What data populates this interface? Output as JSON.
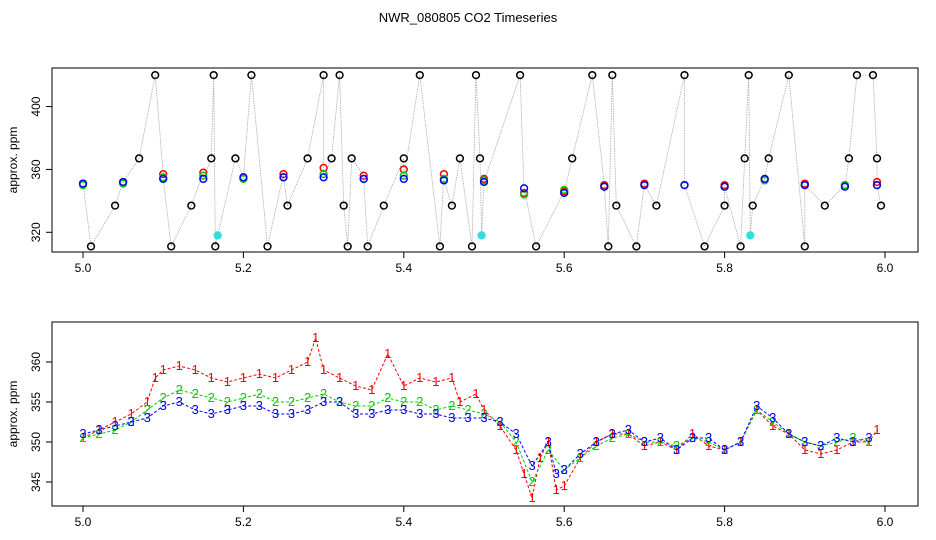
{
  "figure": {
    "title": "NWR_080805  CO2 Timeseries"
  },
  "colors": {
    "red": "#ff0000",
    "green": "#00cc00",
    "blue": "#0000ff",
    "black": "#000000",
    "cyan": "#33dddd",
    "gray": "#aaaaaa"
  },
  "chart_data": [
    {
      "type": "scatter",
      "title": "NWR_080805  CO2 Timeseries",
      "xlabel": "",
      "ylabel": "approx. ppm",
      "xlim": [
        5.0,
        6.0
      ],
      "ylim": [
        310,
        422
      ],
      "xticks": [
        5.0,
        5.2,
        5.4,
        5.6,
        5.8,
        6.0
      ],
      "xtick_labels": [
        "5.0",
        "5.2",
        "5.4",
        "5.6",
        "5.8",
        "6.0"
      ],
      "yticks": [
        320,
        360,
        400
      ],
      "ytick_labels": [
        "320",
        "360",
        "400"
      ],
      "grid": false,
      "legend": "none",
      "series": [
        {
          "color": "black",
          "marker": "circle",
          "x": [
            5.01,
            5.04,
            5.07,
            5.09,
            5.11,
            5.135,
            5.16,
            5.163,
            5.165,
            5.19,
            5.21,
            5.23,
            5.255,
            5.28,
            5.3,
            5.31,
            5.32,
            5.325,
            5.33,
            5.335,
            5.355,
            5.375,
            5.4,
            5.42,
            5.445,
            5.46,
            5.47,
            5.485,
            5.49,
            5.495,
            5.545,
            5.565,
            5.61,
            5.635,
            5.655,
            5.66,
            5.665,
            5.69,
            5.715,
            5.75,
            5.775,
            5.8,
            5.82,
            5.825,
            5.83,
            5.835,
            5.855,
            5.88,
            5.9,
            5.925,
            5.955,
            5.965,
            5.985,
            5.99,
            5.995
          ],
          "y": [
            311,
            337,
            367,
            420,
            311,
            337,
            367,
            420,
            311,
            367,
            420,
            311,
            337,
            367,
            420,
            367,
            420,
            337,
            311,
            367,
            311,
            337,
            367,
            420,
            311,
            337,
            367,
            311,
            420,
            367,
            420,
            311,
            367,
            420,
            311,
            420,
            337,
            311,
            337,
            420,
            311,
            337,
            311,
            367,
            420,
            337,
            367,
            420,
            311,
            337,
            367,
            420,
            420,
            367,
            337
          ]
        },
        {
          "color": "cyan",
          "marker": "circle",
          "x": [
            5.168,
            5.497,
            5.832
          ],
          "y": [
            318,
            318,
            318
          ]
        },
        {
          "color": "red",
          "marker": "circle",
          "x": [
            5.0,
            5.05,
            5.1,
            5.15,
            5.2,
            5.25,
            5.3,
            5.35,
            5.4,
            5.45,
            5.5,
            5.55,
            5.6,
            5.65,
            5.7,
            5.75,
            5.8,
            5.85,
            5.9,
            5.95,
            5.99
          ],
          "y": [
            351,
            352,
            357,
            358,
            355,
            357,
            361,
            356,
            360,
            357,
            354,
            345,
            346,
            350,
            351,
            350,
            350,
            354,
            351,
            350,
            352
          ]
        },
        {
          "color": "green",
          "marker": "circle",
          "x": [
            5.0,
            5.05,
            5.1,
            5.15,
            5.2,
            5.25,
            5.3,
            5.35,
            5.4,
            5.45,
            5.5,
            5.55,
            5.6,
            5.65,
            5.7,
            5.75,
            5.8,
            5.85,
            5.9,
            5.95,
            5.99
          ],
          "y": [
            350,
            351,
            355,
            356,
            354,
            355,
            357,
            354,
            356,
            354,
            353,
            344,
            347,
            349,
            350,
            350,
            349,
            353,
            350,
            350,
            350
          ]
        },
        {
          "color": "blue",
          "marker": "circle",
          "x": [
            5.0,
            5.05,
            5.1,
            5.15,
            5.2,
            5.25,
            5.3,
            5.35,
            5.4,
            5.45,
            5.5,
            5.55,
            5.6,
            5.65,
            5.7,
            5.75,
            5.8,
            5.85,
            5.9,
            5.95,
            5.99
          ],
          "y": [
            351,
            352,
            354,
            354,
            355,
            355,
            355,
            354,
            354,
            353,
            352,
            348,
            345,
            349,
            350,
            350,
            349,
            354,
            350,
            349,
            350
          ]
        }
      ]
    },
    {
      "type": "line",
      "title": "",
      "xlabel": "",
      "ylabel": "approx. ppm",
      "xlim": [
        5.0,
        6.0
      ],
      "ylim": [
        342.5,
        364.5
      ],
      "xticks": [
        5.0,
        5.2,
        5.4,
        5.6,
        5.8,
        6.0
      ],
      "xtick_labels": [
        "5.0",
        "5.2",
        "5.4",
        "5.6",
        "5.8",
        "6.0"
      ],
      "yticks": [
        345,
        350,
        355,
        360
      ],
      "ytick_labels": [
        "345",
        "350",
        "355",
        "360"
      ],
      "grid": false,
      "legend": "none",
      "series": [
        {
          "name": "1",
          "color": "red",
          "x": [
            5.0,
            5.02,
            5.04,
            5.06,
            5.08,
            5.09,
            5.1,
            5.12,
            5.14,
            5.16,
            5.18,
            5.2,
            5.22,
            5.24,
            5.26,
            5.28,
            5.29,
            5.3,
            5.32,
            5.34,
            5.36,
            5.38,
            5.4,
            5.42,
            5.44,
            5.46,
            5.47,
            5.49,
            5.5,
            5.52,
            5.54,
            5.55,
            5.56,
            5.57,
            5.58,
            5.59,
            5.6,
            5.62,
            5.64,
            5.66,
            5.68,
            5.7,
            5.72,
            5.74,
            5.76,
            5.78,
            5.8,
            5.82,
            5.84,
            5.86,
            5.88,
            5.9,
            5.92,
            5.94,
            5.96,
            5.98,
            5.99
          ],
          "y": [
            350.5,
            351.5,
            352.5,
            353.5,
            355.0,
            358.0,
            359.0,
            359.5,
            359.0,
            358.0,
            357.5,
            358.0,
            358.5,
            358.0,
            359.0,
            360.0,
            363.0,
            359.0,
            358.0,
            357.0,
            356.5,
            361.0,
            357.0,
            358.0,
            357.5,
            358.0,
            355.0,
            356.0,
            354.0,
            352.0,
            349.0,
            346.0,
            343.0,
            348.0,
            350.0,
            344.0,
            344.5,
            348.0,
            350.0,
            351.0,
            351.0,
            349.5,
            350.0,
            349.0,
            351.0,
            349.5,
            349.0,
            350.0,
            354.0,
            352.0,
            351.0,
            349.0,
            348.5,
            349.0,
            350.0,
            350.0,
            351.5
          ]
        },
        {
          "name": "2",
          "color": "green",
          "x": [
            5.0,
            5.02,
            5.04,
            5.06,
            5.08,
            5.1,
            5.12,
            5.14,
            5.16,
            5.18,
            5.2,
            5.22,
            5.24,
            5.26,
            5.28,
            5.3,
            5.32,
            5.34,
            5.36,
            5.38,
            5.4,
            5.42,
            5.44,
            5.46,
            5.48,
            5.5,
            5.52,
            5.54,
            5.56,
            5.58,
            5.6,
            5.62,
            5.64,
            5.66,
            5.68,
            5.7,
            5.72,
            5.74,
            5.76,
            5.78,
            5.8,
            5.82,
            5.84,
            5.86,
            5.88,
            5.9,
            5.92,
            5.94,
            5.96,
            5.98
          ],
          "y": [
            350.5,
            351.0,
            351.5,
            352.5,
            354.0,
            355.5,
            356.5,
            356.0,
            355.5,
            355.0,
            355.5,
            356.0,
            355.0,
            355.0,
            355.5,
            356.0,
            355.0,
            354.5,
            354.5,
            355.5,
            355.0,
            355.0,
            354.0,
            354.5,
            354.0,
            353.5,
            352.5,
            350.0,
            345.0,
            349.0,
            346.5,
            348.0,
            349.5,
            350.5,
            351.0,
            350.0,
            350.0,
            349.5,
            350.5,
            350.0,
            349.0,
            350.0,
            354.0,
            352.5,
            351.0,
            350.0,
            349.5,
            350.0,
            350.5,
            350.0
          ]
        },
        {
          "name": "3",
          "color": "blue",
          "x": [
            5.0,
            5.02,
            5.04,
            5.06,
            5.08,
            5.1,
            5.12,
            5.14,
            5.16,
            5.18,
            5.2,
            5.22,
            5.24,
            5.26,
            5.28,
            5.3,
            5.32,
            5.34,
            5.36,
            5.38,
            5.4,
            5.42,
            5.44,
            5.46,
            5.48,
            5.5,
            5.52,
            5.54,
            5.56,
            5.58,
            5.59,
            5.6,
            5.62,
            5.64,
            5.66,
            5.68,
            5.7,
            5.72,
            5.74,
            5.76,
            5.78,
            5.8,
            5.82,
            5.84,
            5.86,
            5.88,
            5.9,
            5.92,
            5.94,
            5.96,
            5.98
          ],
          "y": [
            351.0,
            351.5,
            352.0,
            352.5,
            353.0,
            354.5,
            355.0,
            354.0,
            353.5,
            354.0,
            354.5,
            354.5,
            353.5,
            353.5,
            354.0,
            355.0,
            355.0,
            353.5,
            353.5,
            354.0,
            354.0,
            353.5,
            353.5,
            353.0,
            353.0,
            353.0,
            352.5,
            351.0,
            347.0,
            350.0,
            346.0,
            346.5,
            348.5,
            350.0,
            351.0,
            351.5,
            350.0,
            350.5,
            349.0,
            350.5,
            350.5,
            349.0,
            350.0,
            354.5,
            353.0,
            351.0,
            350.0,
            349.5,
            350.5,
            350.0,
            350.5
          ]
        }
      ]
    }
  ]
}
